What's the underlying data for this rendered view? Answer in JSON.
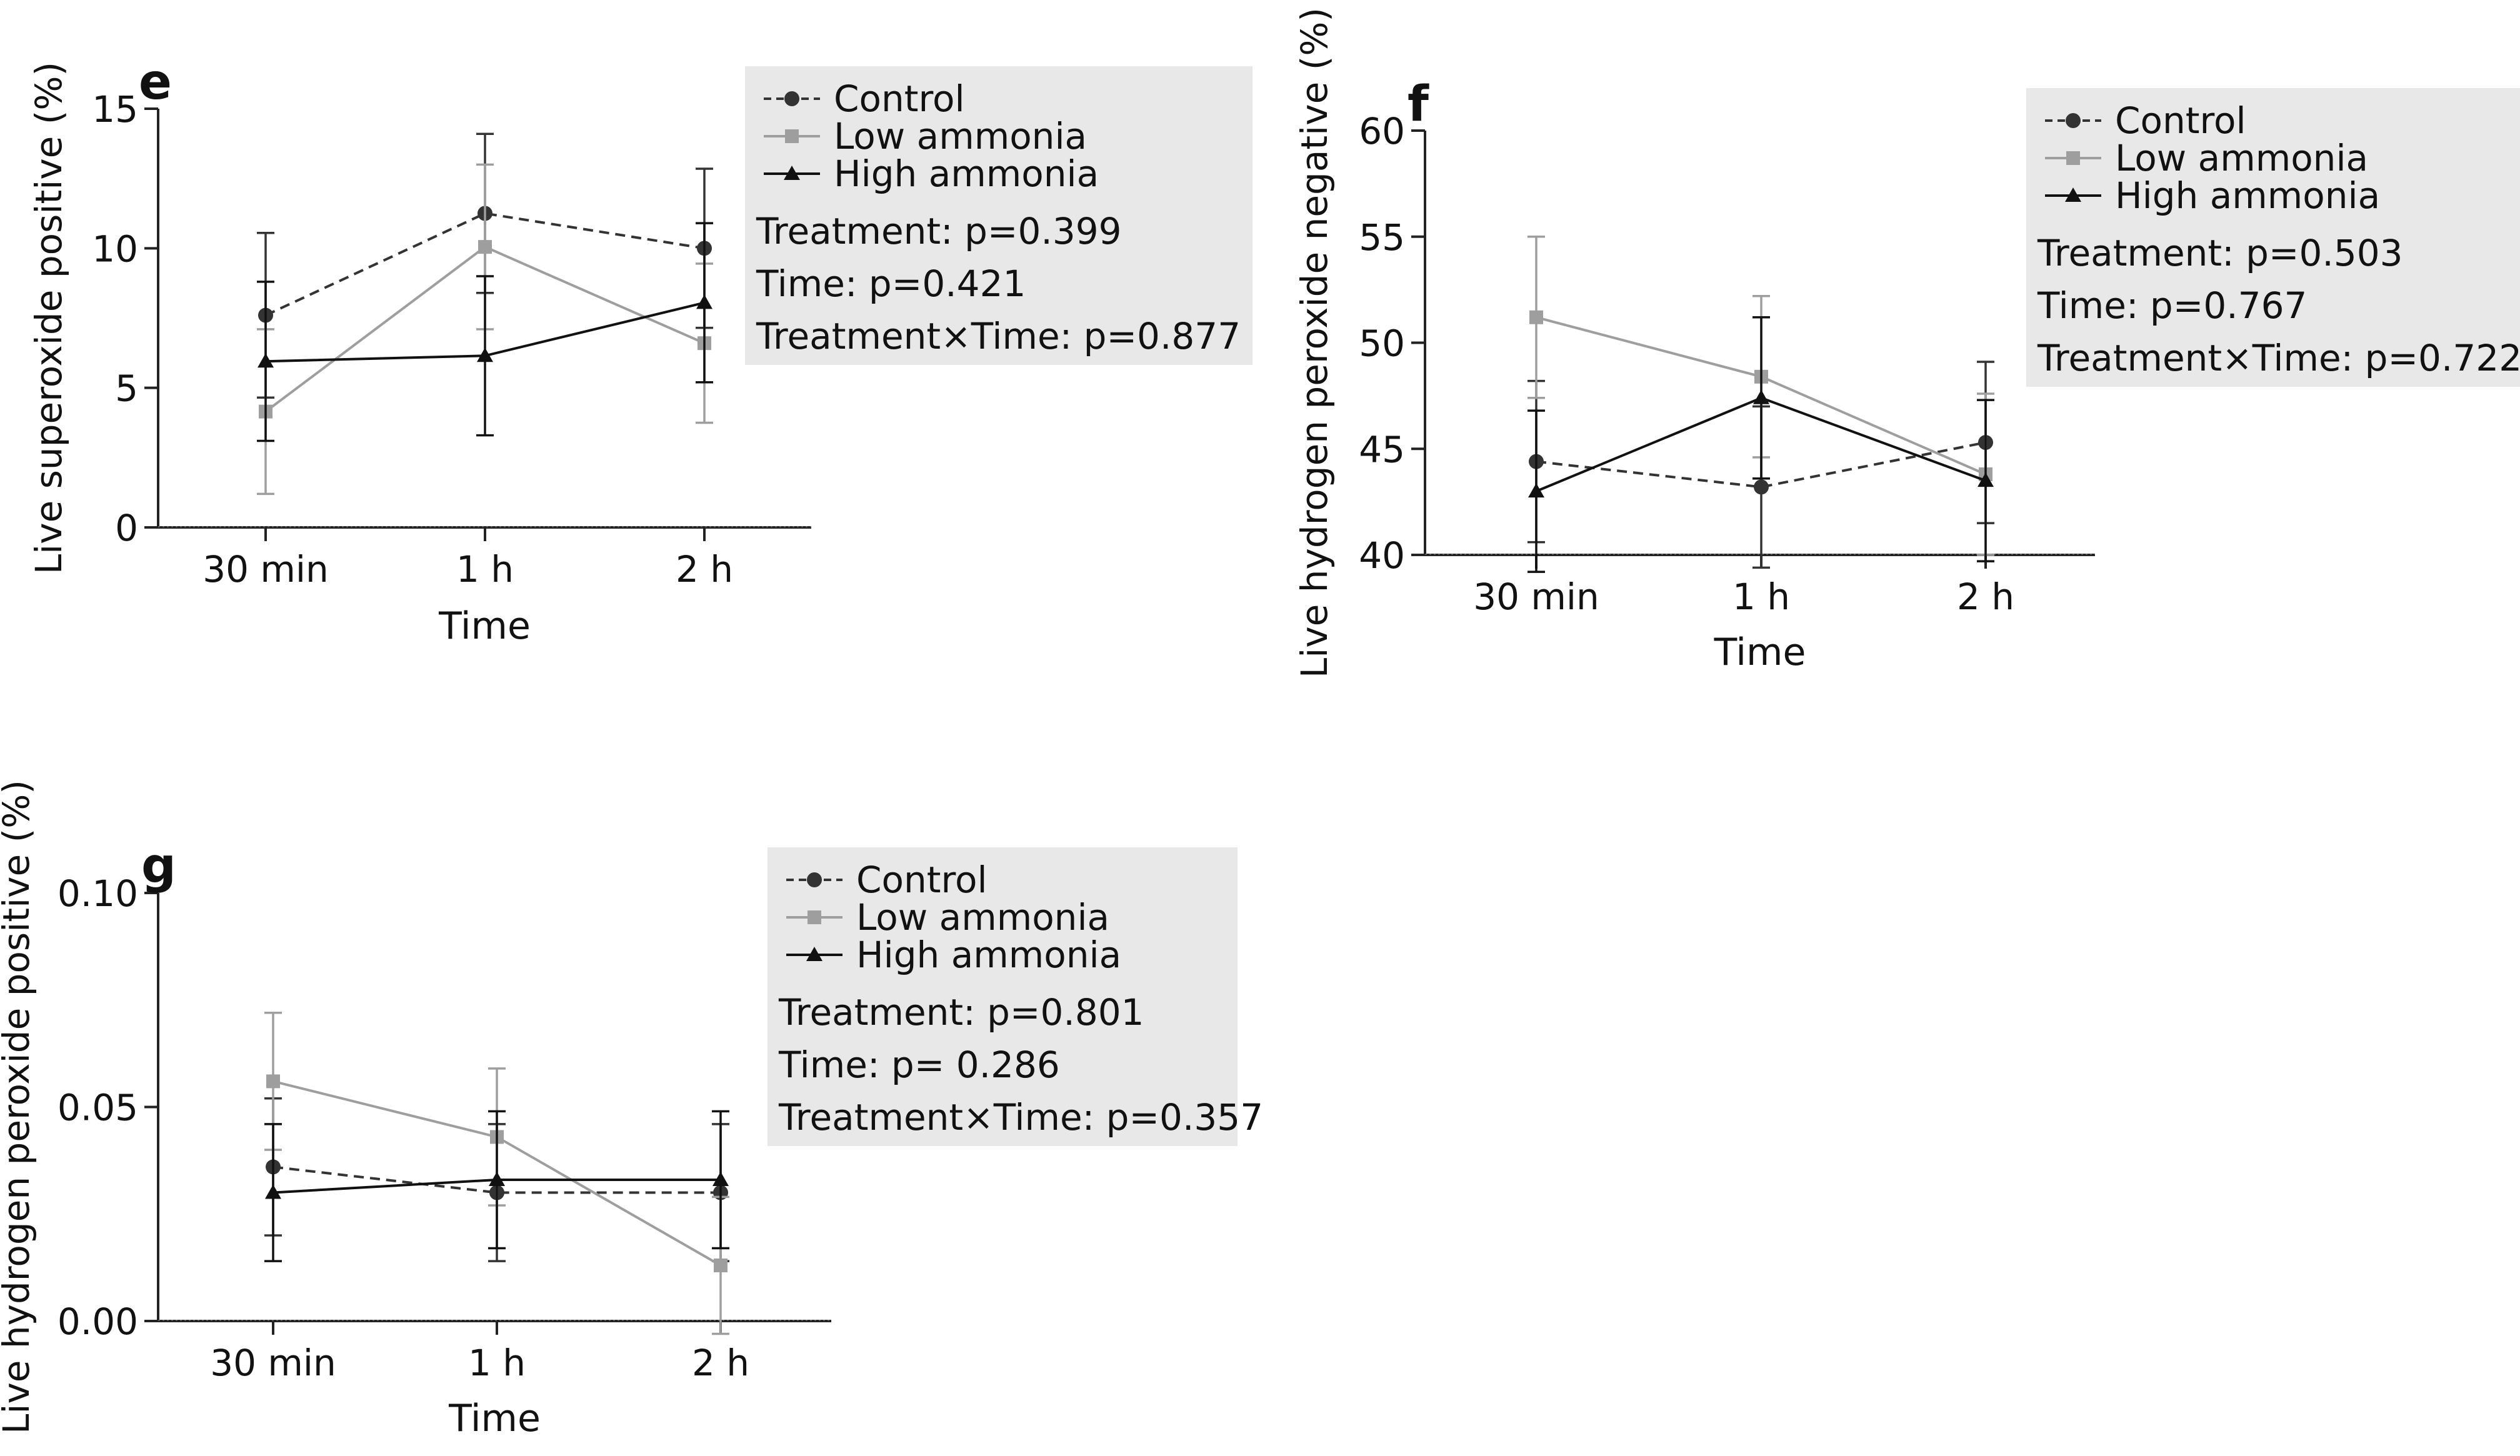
{
  "chart_data": [
    {
      "type": "line",
      "panel_label": "e",
      "categories": [
        "30 min",
        "1 h",
        "2 h"
      ],
      "xlabel": "Time",
      "ylabel": "Live superoxide positive (%)",
      "ylim": [
        0,
        15
      ],
      "yticks": [
        "0",
        "5",
        "10",
        "15"
      ],
      "ytick_values": [
        0,
        5,
        10,
        15
      ],
      "series": [
        {
          "name": "Control",
          "values": [
            7.6,
            11.25,
            10.0
          ],
          "errors": [
            2.95,
            2.85,
            2.85
          ]
        },
        {
          "name": "Low ammonia",
          "values": [
            4.15,
            10.05,
            6.6
          ],
          "errors": [
            2.95,
            2.95,
            2.85
          ]
        },
        {
          "name": "High ammonia",
          "values": [
            5.95,
            6.15,
            8.05
          ],
          "errors": [
            2.85,
            2.85,
            2.85
          ]
        }
      ],
      "stats": [
        "Treatment: p=0.399",
        "Time: p=0.421",
        "Treatment×Time: p=0.877"
      ]
    },
    {
      "type": "line",
      "panel_label": "f",
      "categories": [
        "30 min",
        "1 h",
        "2 h"
      ],
      "xlabel": "Time",
      "ylabel": "Live hydrogen peroxide negative (%)",
      "ylim": [
        40,
        60
      ],
      "yticks": [
        "40",
        "45",
        "50",
        "55",
        "60"
      ],
      "ytick_values": [
        40,
        45,
        50,
        55,
        60
      ],
      "series": [
        {
          "name": "Control",
          "values": [
            44.4,
            43.2,
            45.3
          ],
          "errors": [
            3.8,
            3.8,
            3.8
          ]
        },
        {
          "name": "Low ammonia",
          "values": [
            51.2,
            48.4,
            43.8
          ],
          "errors": [
            3.8,
            3.8,
            3.8
          ]
        },
        {
          "name": "High ammonia",
          "values": [
            43.0,
            47.4,
            43.5
          ],
          "errors": [
            3.8,
            3.8,
            3.8
          ]
        }
      ],
      "stats": [
        "Treatment: p=0.503",
        "Time: p=0.767",
        "Treatment×Time: p=0.722"
      ]
    },
    {
      "type": "line",
      "panel_label": "g",
      "categories": [
        "30 min",
        "1 h",
        "2 h"
      ],
      "xlabel": "Time",
      "ylabel": "Live hydrogen peroxide positive (%)",
      "ylim": [
        0,
        0.1
      ],
      "yticks": [
        "0.00",
        "0.05",
        "0.10"
      ],
      "ytick_values": [
        0,
        0.05,
        0.1
      ],
      "series": [
        {
          "name": "Control",
          "values": [
            0.036,
            0.03,
            0.03
          ],
          "errors": [
            0.016,
            0.016,
            0.016
          ]
        },
        {
          "name": "Low ammonia",
          "values": [
            0.056,
            0.043,
            0.013
          ],
          "errors": [
            0.016,
            0.016,
            0.016
          ]
        },
        {
          "name": "High ammonia",
          "values": [
            0.03,
            0.033,
            0.033
          ],
          "errors": [
            0.016,
            0.016,
            0.016
          ]
        }
      ],
      "stats": [
        "Treatment: p=0.801",
        "Time: p= 0.286",
        "Treatment×Time: p=0.357"
      ]
    }
  ],
  "colors": {
    "control": "#333333",
    "low_ammonia": "#9e9e9e",
    "high_ammonia": "#111111",
    "axis": "#222222",
    "legend_bg": "#e8e8e8"
  }
}
